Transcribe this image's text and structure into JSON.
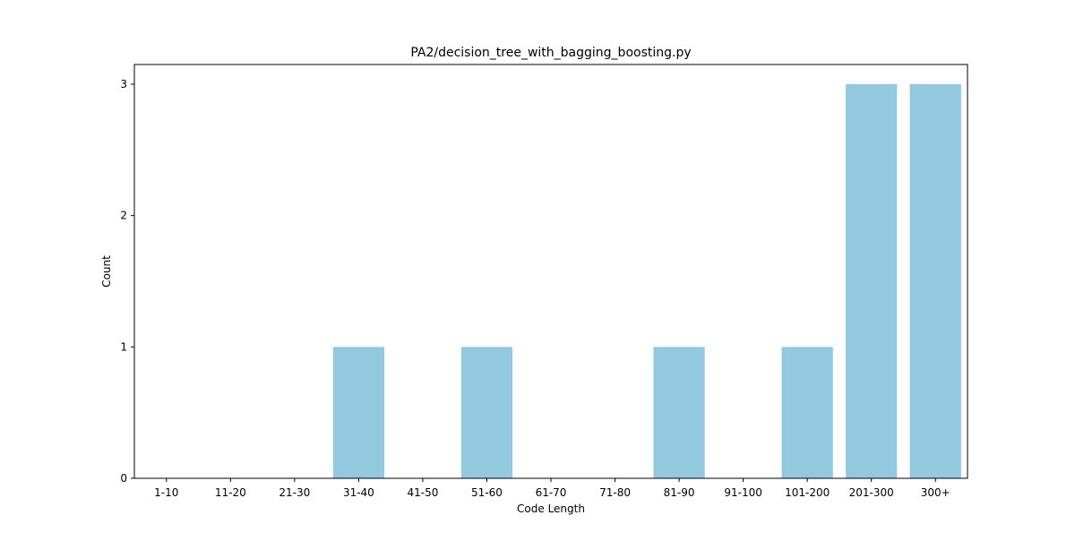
{
  "chart_data": {
    "type": "bar",
    "title": "PA2/decision_tree_with_bagging_boosting.py",
    "xlabel": "Code Length",
    "ylabel": "Count",
    "categories": [
      "1-10",
      "11-20",
      "21-30",
      "31-40",
      "41-50",
      "51-60",
      "61-70",
      "71-80",
      "81-90",
      "91-100",
      "101-200",
      "201-300",
      "300+"
    ],
    "values": [
      0,
      0,
      0,
      1,
      0,
      1,
      0,
      0,
      1,
      0,
      1,
      3,
      3
    ],
    "ylim": [
      0,
      3.15
    ],
    "yticks": [
      0,
      1,
      2,
      3
    ],
    "bar_color": "#92c9de",
    "grid": false,
    "legend": "none"
  }
}
